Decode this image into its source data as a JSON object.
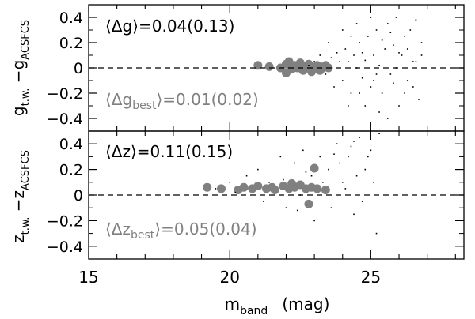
{
  "chart_data": [
    {
      "type": "scatter",
      "panel": "top",
      "ylabel": "g_{t.w.} − g_{ACSFCS}",
      "ylabel_main": "g",
      "ylabel_sub1": "t.w.",
      "ylabel_dash": " −g",
      "ylabel_sub2": "ACSFCS",
      "ylim": [
        -0.5,
        0.5
      ],
      "yticks": [
        -0.4,
        -0.2,
        0,
        0.2,
        0.4
      ],
      "ytick_labels": [
        "−0.4",
        "−0.2",
        "0",
        "0.2",
        "0.4"
      ],
      "reference_line_y": 0,
      "annotation_mean": "⟨Δg⟩=0.04(0.13)",
      "annotation_best_pre": "⟨Δg",
      "annotation_best_sub": "best",
      "annotation_best_post": "⟩=0.01(0.02)",
      "series": [
        {
          "marker": "large-gray-circle",
          "color": "#808080",
          "points": [
            [
              21.0,
              0.02
            ],
            [
              21.4,
              0.01
            ],
            [
              21.8,
              0.0
            ],
            [
              22.0,
              0.03
            ],
            [
              22.1,
              0.05
            ],
            [
              22.2,
              -0.01
            ],
            [
              22.3,
              0.02
            ],
            [
              22.4,
              0.0
            ],
            [
              22.5,
              0.04
            ],
            [
              22.6,
              -0.02
            ],
            [
              22.7,
              0.01
            ],
            [
              22.8,
              0.03
            ],
            [
              22.9,
              0.0
            ],
            [
              23.0,
              -0.01
            ],
            [
              23.1,
              0.02
            ],
            [
              23.2,
              0.01
            ],
            [
              23.3,
              0.0
            ],
            [
              23.4,
              0.02
            ],
            [
              23.5,
              0.0
            ],
            [
              22.0,
              -0.04
            ],
            [
              22.9,
              -0.03
            ],
            [
              23.2,
              -0.02
            ]
          ]
        },
        {
          "marker": "small-black-dot",
          "color": "#000000",
          "points": [
            [
              22.8,
              0.02
            ],
            [
              23.0,
              0.05
            ],
            [
              23.2,
              0.1
            ],
            [
              23.4,
              -0.05
            ],
            [
              23.6,
              0.08
            ],
            [
              23.8,
              0.12
            ],
            [
              24.0,
              -0.1
            ],
            [
              24.1,
              0.15
            ],
            [
              24.2,
              0.05
            ],
            [
              24.3,
              -0.2
            ],
            [
              24.4,
              0.1
            ],
            [
              24.5,
              0.0
            ],
            [
              24.6,
              0.2
            ],
            [
              24.7,
              -0.08
            ],
            [
              24.8,
              0.06
            ],
            [
              24.9,
              0.25
            ],
            [
              25.0,
              -0.15
            ],
            [
              25.1,
              0.1
            ],
            [
              25.2,
              0.3
            ],
            [
              25.3,
              0.02
            ],
            [
              25.4,
              -0.2
            ],
            [
              25.5,
              0.15
            ],
            [
              25.6,
              0.35
            ],
            [
              25.7,
              -0.05
            ],
            [
              25.8,
              0.18
            ],
            [
              25.9,
              0.4
            ],
            [
              26.0,
              -0.3
            ],
            [
              26.1,
              0.1
            ],
            [
              26.2,
              0.25
            ],
            [
              26.3,
              -0.1
            ],
            [
              26.4,
              0.3
            ],
            [
              26.5,
              0.05
            ],
            [
              26.6,
              0.38
            ],
            [
              26.7,
              -0.25
            ],
            [
              26.8,
              0.2
            ],
            [
              24.0,
              0.3
            ],
            [
              24.2,
              -0.3
            ],
            [
              24.5,
              0.35
            ],
            [
              24.8,
              -0.3
            ],
            [
              25.0,
              0.4
            ],
            [
              25.3,
              -0.35
            ],
            [
              25.6,
              -0.4
            ],
            [
              25.9,
              0.0
            ],
            [
              26.2,
              -0.2
            ],
            [
              23.5,
              0.2
            ],
            [
              23.7,
              -0.15
            ],
            [
              24.3,
              0.25
            ],
            [
              24.6,
              -0.2
            ],
            [
              25.1,
              -0.1
            ],
            [
              25.4,
              0.22
            ],
            [
              25.7,
              0.28
            ],
            [
              26.0,
              0.12
            ],
            [
              26.3,
              0.15
            ],
            [
              26.5,
              -0.15
            ],
            [
              23.9,
              0.05
            ],
            [
              24.7,
              0.12
            ],
            [
              25.2,
              -0.05
            ],
            [
              25.8,
              -0.12
            ],
            [
              26.6,
              0.05
            ],
            [
              26.8,
              0.1
            ]
          ]
        }
      ]
    },
    {
      "type": "scatter",
      "panel": "bottom",
      "ylabel": "z_{t.w.} − z_{ACSFCS}",
      "ylabel_main": "z",
      "ylabel_sub1": "t.w.",
      "ylabel_dash": " −z",
      "ylabel_sub2": "ACSFCS",
      "xlabel": "m_band (mag)",
      "xlabel_main": "m",
      "xlabel_sub": "band",
      "xlabel_unit": "(mag)",
      "xlim": [
        15,
        28.3
      ],
      "xticks": [
        15,
        20,
        25
      ],
      "xtick_labels": [
        "15",
        "20",
        "25"
      ],
      "ylim": [
        -0.5,
        0.5
      ],
      "yticks": [
        -0.4,
        -0.2,
        0,
        0.2,
        0.4
      ],
      "ytick_labels": [
        "−0.4",
        "−0.2",
        "0",
        "0.2",
        "0.4"
      ],
      "reference_line_y": 0,
      "annotation_mean": "⟨Δz⟩=0.11(0.15)",
      "annotation_best_pre": "⟨Δz",
      "annotation_best_sub": "best",
      "annotation_best_post": "⟩=0.05(0.04)",
      "series": [
        {
          "marker": "large-gray-circle",
          "color": "#808080",
          "points": [
            [
              19.2,
              0.06
            ],
            [
              19.7,
              0.05
            ],
            [
              20.3,
              0.04
            ],
            [
              20.5,
              0.06
            ],
            [
              20.8,
              0.05
            ],
            [
              21.0,
              0.07
            ],
            [
              21.3,
              0.05
            ],
            [
              21.6,
              0.04
            ],
            [
              21.9,
              0.07
            ],
            [
              22.1,
              0.05
            ],
            [
              22.3,
              0.06
            ],
            [
              22.5,
              0.08
            ],
            [
              22.7,
              0.05
            ],
            [
              22.9,
              0.06
            ],
            [
              23.1,
              0.05
            ],
            [
              23.4,
              0.04
            ],
            [
              22.8,
              -0.07
            ],
            [
              23.0,
              0.21
            ],
            [
              22.2,
              0.09
            ],
            [
              21.5,
              0.06
            ]
          ]
        },
        {
          "marker": "small-black-dot",
          "color": "#000000",
          "points": [
            [
              18.0,
              0.0
            ],
            [
              19.5,
              0.05
            ],
            [
              20.0,
              0.1
            ],
            [
              20.6,
              0.15
            ],
            [
              21.0,
              0.2
            ],
            [
              21.4,
              0.1
            ],
            [
              21.8,
              0.3
            ],
            [
              22.0,
              -0.1
            ],
            [
              22.3,
              0.25
            ],
            [
              22.6,
              0.35
            ],
            [
              22.9,
              0.15
            ],
            [
              23.2,
              0.3
            ],
            [
              23.5,
              0.2
            ],
            [
              23.8,
              0.4
            ],
            [
              24.0,
              0.1
            ],
            [
              24.2,
              0.3
            ],
            [
              24.4,
              -0.15
            ],
            [
              24.6,
              0.45
            ],
            [
              24.8,
              0.2
            ],
            [
              25.0,
              0.35
            ],
            [
              25.2,
              -0.3
            ],
            [
              25.3,
              0.48
            ],
            [
              23.0,
              -0.2
            ],
            [
              23.6,
              -0.1
            ],
            [
              24.1,
              0.05
            ],
            [
              24.5,
              0.15
            ],
            [
              23.3,
              0.1
            ],
            [
              22.5,
              0.0
            ],
            [
              21.2,
              -0.05
            ],
            [
              20.2,
              0.02
            ],
            [
              24.9,
              0.3
            ],
            [
              24.3,
              0.38
            ],
            [
              23.9,
              0.25
            ],
            [
              22.7,
              0.18
            ],
            [
              21.9,
              0.12
            ],
            [
              24.7,
              -0.05
            ],
            [
              25.1,
              0.1
            ],
            [
              23.7,
              0.32
            ],
            [
              22.4,
              -0.12
            ],
            [
              24.4,
              0.42
            ]
          ]
        }
      ]
    }
  ]
}
